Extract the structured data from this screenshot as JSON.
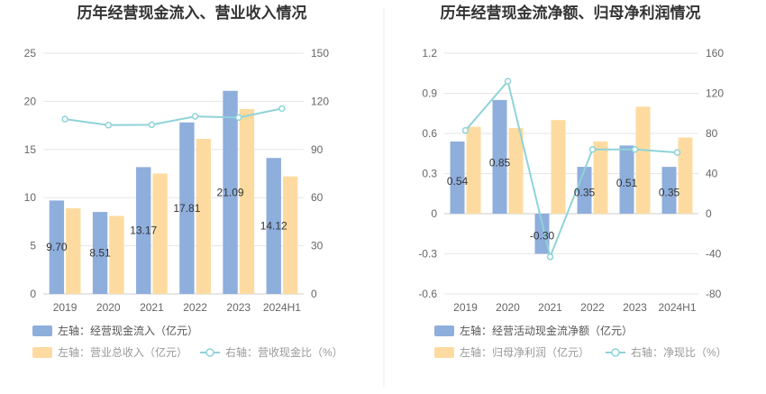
{
  "chart_data": [
    {
      "type": "bar",
      "title": "历年经营现金流入、营业收入情况",
      "categories": [
        "2019",
        "2020",
        "2021",
        "2022",
        "2023",
        "2024H1"
      ],
      "left_axis": {
        "min": 0,
        "max": 25,
        "ticks": [
          "0",
          "5",
          "10",
          "15",
          "20",
          "25"
        ]
      },
      "right_axis": {
        "min": 0,
        "max": 150,
        "ticks": [
          "0",
          "30",
          "60",
          "90",
          "120",
          "150"
        ]
      },
      "series": [
        {
          "name": "左轴：经营现金流入（亿元）",
          "kind": "bar",
          "axis": "left",
          "color": "#8eaedc",
          "values": [
            9.7,
            8.51,
            13.17,
            17.81,
            21.09,
            14.12
          ],
          "labels": [
            "9.70",
            "8.51",
            "13.17",
            "17.81",
            "21.09",
            "14.12"
          ]
        },
        {
          "name": "左轴：营业总收入（亿元）",
          "kind": "bar",
          "axis": "left",
          "color": "#fddba0",
          "values": [
            8.9,
            8.1,
            12.5,
            16.1,
            19.2,
            12.2
          ]
        },
        {
          "name": "右轴：营收现金比（%）",
          "kind": "line",
          "axis": "right",
          "color": "#8fd3d9",
          "values": [
            108.9,
            105.2,
            105.4,
            110.6,
            109.9,
            115.5
          ]
        }
      ],
      "grid": true,
      "legend_position": "bottom-left"
    },
    {
      "type": "bar",
      "title": "历年经营现金流净额、归母净利润情况",
      "categories": [
        "2019",
        "2020",
        "2021",
        "2022",
        "2023",
        "2024H1"
      ],
      "left_axis": {
        "min": -0.6,
        "max": 1.2,
        "ticks": [
          "-0.6",
          "-0.3",
          "0",
          "0.3",
          "0.6",
          "0.9",
          "1.2"
        ]
      },
      "right_axis": {
        "min": -80,
        "max": 160,
        "ticks": [
          "-80",
          "-40",
          "0",
          "40",
          "80",
          "120",
          "160"
        ]
      },
      "series": [
        {
          "name": "左轴：经营活动现金流净额（亿元）",
          "kind": "bar",
          "axis": "left",
          "color": "#8eaedc",
          "values": [
            0.54,
            0.85,
            -0.3,
            0.35,
            0.51,
            0.35
          ],
          "labels": [
            "0.54",
            "0.85",
            "-0.30",
            "0.35",
            "0.51",
            "0.35"
          ]
        },
        {
          "name": "左轴：归母净利润（亿元）",
          "kind": "bar",
          "axis": "left",
          "color": "#fddba0",
          "values": [
            0.65,
            0.64,
            0.7,
            0.54,
            0.8,
            0.57
          ]
        },
        {
          "name": "右轴：净现比（%）",
          "kind": "line",
          "axis": "right",
          "color": "#8fd3d9",
          "values": [
            83,
            132,
            -43,
            64,
            64,
            61
          ]
        }
      ],
      "grid": true,
      "legend_position": "bottom-left"
    }
  ]
}
